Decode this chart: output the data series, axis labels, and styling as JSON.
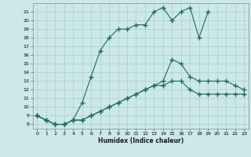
{
  "xlabel": "Humidex (Indice chaleur)",
  "bg_color": "#cce8e8",
  "grid_color": "#aacece",
  "line_color": "#1a6e5e",
  "xlim": [
    -0.5,
    23.5
  ],
  "ylim": [
    7.5,
    22
  ],
  "xticks": [
    0,
    1,
    2,
    3,
    4,
    5,
    6,
    7,
    8,
    9,
    10,
    11,
    12,
    13,
    14,
    15,
    16,
    17,
    18,
    19,
    20,
    21,
    22,
    23
  ],
  "yticks": [
    8,
    9,
    10,
    11,
    12,
    13,
    14,
    15,
    16,
    17,
    18,
    19,
    20,
    21
  ],
  "line1_x": [
    0,
    1,
    2,
    3,
    4,
    5,
    6,
    7,
    8,
    9,
    10,
    11,
    12,
    13,
    14,
    15,
    16,
    17,
    18,
    19,
    20,
    21,
    22,
    23
  ],
  "line1_y": [
    9,
    8.5,
    8,
    8,
    8.5,
    8.5,
    9,
    9.5,
    10,
    10.5,
    11,
    11.5,
    12,
    12.5,
    12.5,
    13,
    13,
    12,
    11.5,
    11.5,
    11.5,
    11.5,
    11.5,
    11.5
  ],
  "line2_x": [
    0,
    1,
    2,
    3,
    4,
    5,
    6,
    7,
    8,
    9,
    10,
    11,
    12,
    13,
    14,
    15,
    16,
    17,
    18,
    19
  ],
  "line2_y": [
    9,
    8.5,
    8,
    8,
    8.5,
    10.5,
    13.5,
    16.5,
    18,
    19,
    19,
    19.5,
    19.5,
    21,
    21.5,
    20,
    21,
    21.5,
    18,
    21
  ],
  "line3_x": [
    0,
    1,
    2,
    3,
    4,
    5,
    6,
    7,
    8,
    9,
    10,
    11,
    12,
    13,
    14,
    15,
    16,
    17,
    18,
    19,
    20,
    21,
    22,
    23
  ],
  "line3_y": [
    9,
    8.5,
    8,
    8,
    8.5,
    8.5,
    9,
    9.5,
    10,
    10.5,
    11,
    11.5,
    12,
    12.5,
    13,
    15.5,
    15,
    13.5,
    13,
    13,
    13,
    13,
    12.5,
    12
  ]
}
